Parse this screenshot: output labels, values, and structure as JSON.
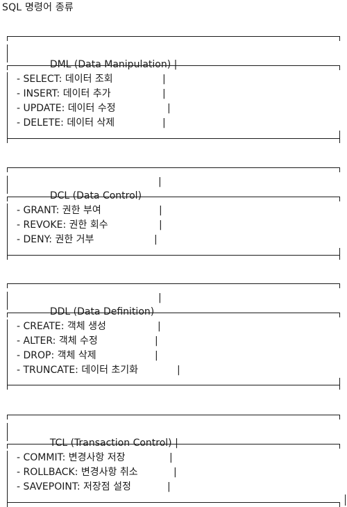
{
  "document": {
    "title": "SQL 명령어 종류"
  },
  "sections": [
    {
      "header": "DML (Data Manipulation) |",
      "items": [
        "- SELECT: 데이터 조회",
        "- INSERT: 데이터 추가",
        "- UPDATE: 데이터 수정",
        "- DELETE: 데이터 삭제"
      ]
    },
    {
      "header": "DCL (Data Control)",
      "items": [
        "- GRANT: 권한 부여",
        "- REVOKE: 권한 회수",
        "- DENY: 권한 거부"
      ]
    },
    {
      "header": "DDL (Data Definition)",
      "items": [
        "- CREATE: 객체 생성",
        "- ALTER: 객체 수정",
        "- DROP: 객체 삭제",
        "- TRUNCATE: 데이터 초기화"
      ]
    },
    {
      "header": "TCL (Transaction Control) |",
      "items": [
        "- COMMIT: 변경사항 저장",
        "- ROLLBACK: 변경사항 취소",
        "- SAVEPOINT: 저장점 설정"
      ]
    }
  ],
  "separator": "|"
}
